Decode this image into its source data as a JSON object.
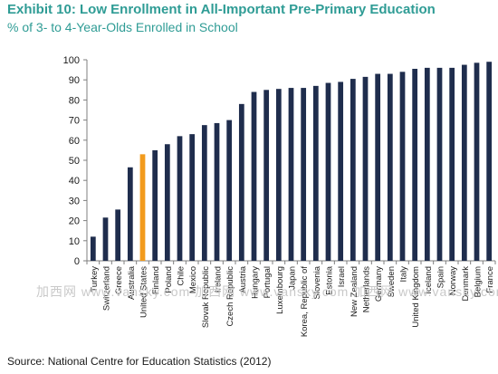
{
  "title": "Exhibit 10: Low Enrollment in All-Important Pre-Primary Education",
  "subtitle": "% of 3- to 4-Year-Olds Enrolled in School",
  "source": "Source:  National Centre for Education Statistics (2012)",
  "watermark": "加西网 www.vansky.com   加西网 www.vansky.com   加西网 www.vansky.com",
  "colors": {
    "bar": "#1f2d4d",
    "highlight": "#f29b1d",
    "title": "#2f9c95"
  },
  "chart_data": {
    "type": "bar",
    "categories": [
      "Turkey",
      "Switzerland",
      "Greece",
      "Australia",
      "United States",
      "Finland",
      "Poland",
      "Chile",
      "Mexico",
      "Slovak Republic",
      "Ireland",
      "Czech Republic",
      "Austria",
      "Hungary",
      "Portugal",
      "Luxembourg",
      "Japan",
      "Korea, Republic of",
      "Slovenia",
      "Estonia",
      "Israel",
      "New Zealand",
      "Netherlands",
      "Germany",
      "Sweden",
      "Italy",
      "United Kingdom",
      "Iceland",
      "Spain",
      "Norway",
      "Denmark",
      "Belgium",
      "France"
    ],
    "values": [
      12,
      21.5,
      25.5,
      46.5,
      53,
      55,
      58,
      62,
      63,
      67.5,
      68.5,
      70,
      78,
      84,
      85,
      85.5,
      86,
      86,
      87,
      88.5,
      89,
      90.5,
      91.5,
      93,
      93,
      94,
      95.5,
      96,
      96,
      96,
      97.5,
      98.5,
      99
    ],
    "highlight_index": 4,
    "ylim": [
      0,
      100
    ],
    "yticks": [
      0,
      10,
      20,
      30,
      40,
      50,
      60,
      70,
      80,
      90,
      100
    ],
    "xlabel": "",
    "ylabel": "",
    "grid": false,
    "legend": "none"
  }
}
